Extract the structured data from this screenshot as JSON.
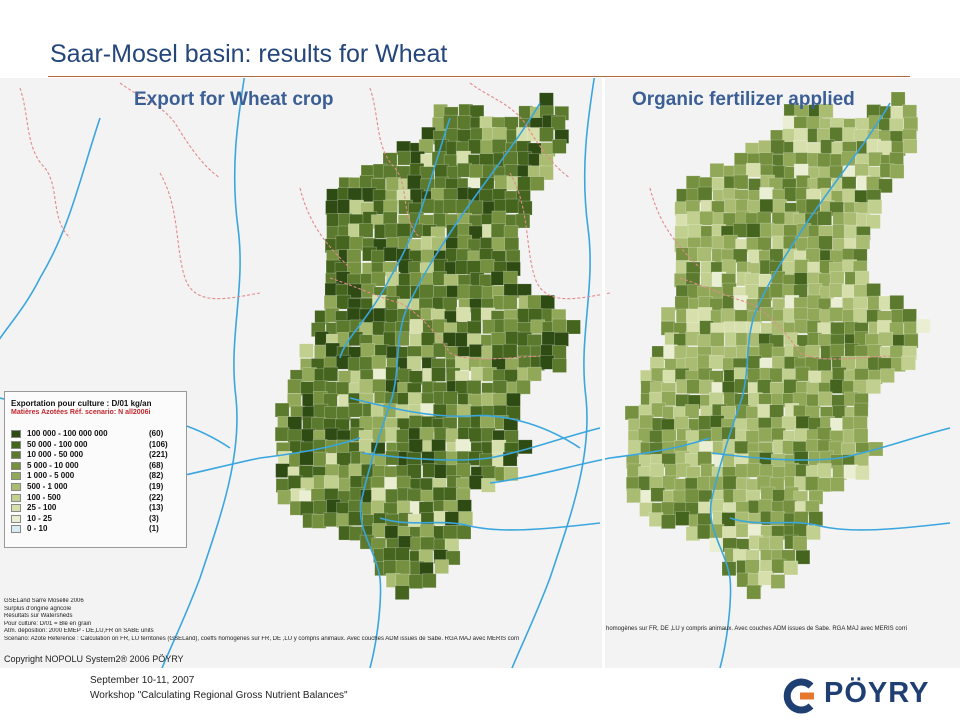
{
  "slide": {
    "title": "Saar-Mosel basin: results for Wheat"
  },
  "panels": {
    "left_title": "Export for Wheat crop",
    "right_title": "Organic fertilizer applied"
  },
  "legend": {
    "title": "Exportation pour culture : D/01  kg/an",
    "subtitle": "Matières Azotées  Réf. scenario: N all2006i",
    "classes": [
      {
        "range": "100 000 - 100 000 000",
        "count": "(60)",
        "color": "#2f4b14"
      },
      {
        "range": "50 000 -  100 000",
        "count": "(106)",
        "color": "#45651f"
      },
      {
        "range": "10 000 -   50 000",
        "count": "(221)",
        "color": "#5b7a2d"
      },
      {
        "range": "5 000 -   10 000",
        "count": "(68)",
        "color": "#75903f"
      },
      {
        "range": "1 000 -    5 000",
        "count": "(82)",
        "color": "#91a858"
      },
      {
        "range": "500 -    1 000",
        "count": "(19)",
        "color": "#a9bc72"
      },
      {
        "range": "100 -      500",
        "count": "(22)",
        "color": "#c1d08f"
      },
      {
        "range": "25 -      100",
        "count": "(13)",
        "color": "#d7e0ad"
      },
      {
        "range": "10 -       25",
        "count": "(3)",
        "color": "#eaeed2"
      },
      {
        "range": "0 -       10",
        "count": "(1)",
        "color": "#d9ecf6"
      }
    ]
  },
  "notes": {
    "lines": [
      "GSELand Sarre Moselle 2006",
      "Surplus d'origine agricole",
      "Résultats sur Watersheds",
      "Pour culture: D/01     = Blé en grain",
      "Atm. déposition: 2000 EMEP - DE,LU,FR on SABE units",
      "Scenario: Azote Reference : Calculation on FR, LU territories (GSELand), coeffs homogènes sur FR, DE ,LU y compris animaux. Avec couches ADM issues de Sabe. RGA MAJ avec MERIS corri"
    ],
    "right_line": "homogènes sur FR, DE ,LU y compris animaux. Avec couches ADM issues de Sabe. RGA MAJ avec MERIS corri"
  },
  "copyright": "Copyright NOPOLU System2® 2006 PÖYRY",
  "footer": {
    "date": "September 10-11, 2007",
    "workshop": "Workshop \"Calculating Regional Gross Nutrient Balances\""
  },
  "logo": {
    "text": "PÖYRY",
    "colors": {
      "blue": "#1f3f73",
      "orange": "#e8762b"
    }
  },
  "map_colors": {
    "river": "#3aa6df",
    "border": "#e38a8a",
    "background": "#f3f3f3"
  }
}
